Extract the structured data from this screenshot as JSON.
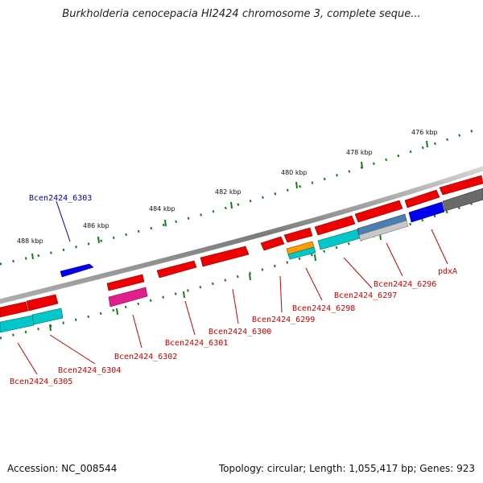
{
  "title": "Burkholderia cenocepacia HI2424 chromosome 3, complete seque...",
  "footer": {
    "accession": "Accession: NC_008544",
    "summary": "Topology: circular; Length: 1,055,417 bp; Genes: 923"
  },
  "colors": {
    "backbone": "#8c8c8c",
    "ticks": "#1a7a1a",
    "gene_red": "#ff0000",
    "gene_blue": "#0000ee",
    "gene_cyan": "#00c8c8",
    "gene_magenta": "#e0208a",
    "gene_orange": "#ff9a00",
    "gene_steel": "#4a7fb0",
    "gene_gray": "#777777",
    "label_red": "#cc0000",
    "label_blue": "#0000aa"
  },
  "tick_labels": [
    "476 kbp",
    "478 kbp",
    "480 kbp",
    "482 kbp",
    "484 kbp",
    "486 kbp",
    "488 kbp"
  ],
  "gene_labels": [
    "Bcen2424_6303",
    "pdxA",
    "Bcen2424_6296",
    "Bcen2424_6297",
    "Bcen2424_6298",
    "Bcen2424_6299",
    "Bcen2424_6300",
    "Bcen2424_6301",
    "Bcen2424_6302",
    "Bcen2424_6304",
    "Bcen2424_6305"
  ]
}
